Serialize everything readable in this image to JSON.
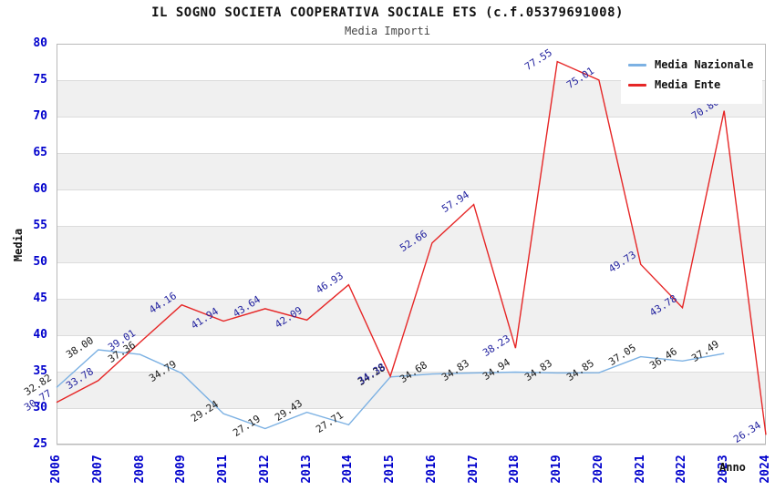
{
  "title": "IL SOGNO SOCIETA COOPERATIVA SOCIALE ETS (c.f.05379691008)",
  "subtitle": "Media Importi",
  "y_axis": {
    "label": "Media",
    "ticks": [
      80,
      75,
      70,
      65,
      60,
      55,
      50,
      45,
      40,
      35,
      30,
      25
    ]
  },
  "x_axis": {
    "label": "Anno",
    "ticks": [
      "2006",
      "2007",
      "2008",
      "2009",
      "2011",
      "2012",
      "2013",
      "2014",
      "2015",
      "2016",
      "2017",
      "2018",
      "2019",
      "2020",
      "2021",
      "2022",
      "2023",
      "2024"
    ]
  },
  "legend": {
    "items": [
      {
        "label": "Media Nazionale",
        "color": "#7cb1e3"
      },
      {
        "label": "Media Ente",
        "color": "#e62626"
      }
    ]
  },
  "colors": {
    "axis_tick_text": "#0000cc",
    "nazionale_line": "#7cb1e3",
    "ente_line": "#e62626",
    "nazionale_point_label": "#1a1a1a",
    "ente_point_label": "#1f1f9e",
    "band_gray": "#f0f0f0",
    "gridline": "#dcdcdc",
    "plot_border": "#b9b9b9"
  },
  "chart_data": {
    "type": "line",
    "title": "IL SOGNO SOCIETA COOPERATIVA SOCIALE ETS (c.f.05379691008)",
    "subtitle": "Media Importi",
    "xlabel": "Anno",
    "ylabel": "Media",
    "x": [
      "2006",
      "2007",
      "2008",
      "2009",
      "2011",
      "2012",
      "2013",
      "2014",
      "2015",
      "2016",
      "2017",
      "2018",
      "2019",
      "2020",
      "2021",
      "2022",
      "2023",
      "2024"
    ],
    "ylim": [
      25,
      80
    ],
    "y_step": 5,
    "grid": "horizontal-gridlines-with-alternating-bands",
    "legend_position": "top-right",
    "note_2010_missing": "x axis skips year 2010",
    "series": [
      {
        "name": "Media Nazionale",
        "values": [
          32.82,
          38.0,
          37.36,
          34.79,
          29.24,
          27.19,
          29.43,
          27.71,
          34.28,
          34.68,
          34.83,
          34.94,
          34.83,
          34.85,
          37.05,
          36.46,
          37.49,
          null
        ]
      },
      {
        "name": "Media Ente",
        "values": [
          30.77,
          33.78,
          39.01,
          44.16,
          41.94,
          43.64,
          42.09,
          46.93,
          34.38,
          52.66,
          57.94,
          38.23,
          77.55,
          75.01,
          49.73,
          43.78,
          70.8,
          26.34
        ]
      }
    ]
  }
}
